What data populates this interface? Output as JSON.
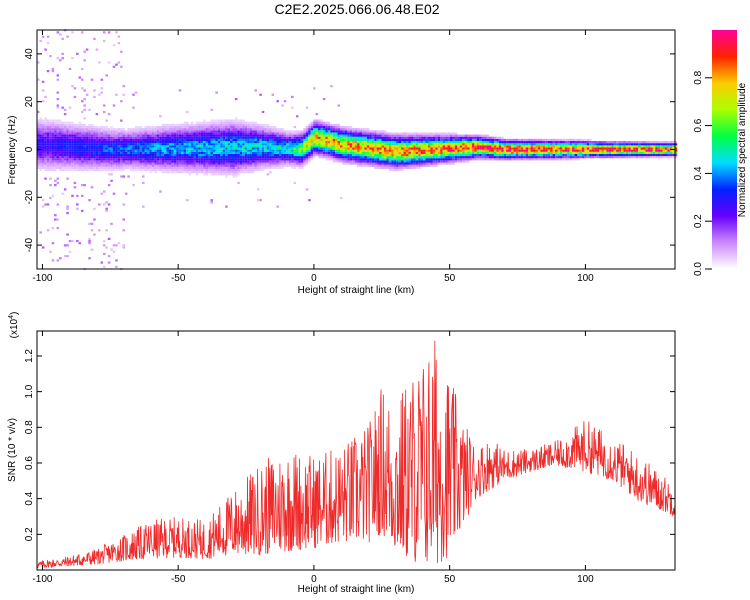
{
  "title": "C2E2.2025.066.06.48.E02",
  "chart_data": [
    {
      "type": "heatmap",
      "xlabel": "Height of straight line (km)",
      "ylabel": "Frequency (Hz)",
      "xlim": [
        -102,
        133
      ],
      "ylim": [
        -50,
        50
      ],
      "xticks": [
        -100,
        -50,
        0,
        50,
        100
      ],
      "xtick_labels": [
        "-100",
        "-50",
        "0",
        "50",
        "100"
      ],
      "yticks": [
        -40,
        -20,
        0,
        20,
        40
      ],
      "ytick_labels": [
        "-40",
        "-20",
        "0",
        "20",
        "40"
      ],
      "colorbar": {
        "label": "Normalized spectral amplitude",
        "range": [
          0,
          1
        ],
        "ticks": [
          0.0,
          0.2,
          0.4,
          0.6,
          0.8
        ],
        "tick_labels": [
          "0.0",
          "0.2",
          "0.4",
          "0.6",
          "0.8"
        ],
        "colors": [
          "#ffffff",
          "#cc88ff",
          "#6600ff",
          "#0022ff",
          "#00ddff",
          "#00ff44",
          "#aaff00",
          "#ffcc00",
          "#ff2200",
          "#ff0099"
        ]
      },
      "band_center_hz": [
        {
          "x": -100,
          "f": 2
        },
        {
          "x": -75,
          "f": 0
        },
        {
          "x": -50,
          "f": 0.5
        },
        {
          "x": -20,
          "f": 1
        },
        {
          "x": -5,
          "f": 0
        },
        {
          "x": 0,
          "f": 5
        },
        {
          "x": 10,
          "f": 2
        },
        {
          "x": 30,
          "f": -1
        },
        {
          "x": 60,
          "f": 1
        },
        {
          "x": 70,
          "f": 0
        },
        {
          "x": 133,
          "f": 0
        }
      ],
      "band_halfwidth_hz": [
        {
          "x": -100,
          "w": 8
        },
        {
          "x": -70,
          "w": 6
        },
        {
          "x": -30,
          "w": 8
        },
        {
          "x": -10,
          "w": 5
        },
        {
          "x": 30,
          "w": 5
        },
        {
          "x": 70,
          "w": 3
        },
        {
          "x": 133,
          "w": 2
        }
      ],
      "band_peak_amplitude": [
        {
          "x": -100,
          "a": 0.3
        },
        {
          "x": -50,
          "a": 0.45
        },
        {
          "x": -10,
          "a": 0.5
        },
        {
          "x": 0,
          "a": 0.85
        },
        {
          "x": 30,
          "a": 0.9
        },
        {
          "x": 70,
          "a": 1.0
        },
        {
          "x": 133,
          "a": 1.0
        }
      ]
    },
    {
      "type": "line",
      "xlabel": "Height of straight line (km)",
      "ylabel": "SNR (10 * v/v)",
      "y_multiplier_label": "(x10",
      "y_multiplier_exponent": "4",
      "y_multiplier_close": ")",
      "xlim": [
        -102,
        133
      ],
      "ylim": [
        0,
        1.34
      ],
      "xticks": [
        -100,
        -50,
        0,
        50,
        100
      ],
      "xtick_labels": [
        "-100",
        "-50",
        "0",
        "50",
        "100"
      ],
      "yticks": [
        0.2,
        0.4,
        0.6,
        0.8,
        1.0,
        1.2
      ],
      "ytick_labels": [
        "0.2",
        "0.4",
        "0.6",
        "0.8",
        "1.0",
        "1.2"
      ],
      "line_color": "#ee2a2a",
      "envelope": {
        "x": [
          -102,
          -90,
          -80,
          -70,
          -60,
          -50,
          -40,
          -30,
          -20,
          -10,
          0,
          10,
          20,
          25,
          30,
          35,
          40,
          45,
          50,
          55,
          60,
          65,
          70,
          80,
          90,
          100,
          110,
          120,
          133
        ],
        "upper": [
          0.05,
          0.08,
          0.12,
          0.2,
          0.28,
          0.3,
          0.28,
          0.45,
          0.6,
          0.7,
          0.65,
          0.7,
          0.82,
          1.05,
          0.95,
          1.1,
          1.2,
          1.34,
          1.1,
          0.85,
          0.7,
          0.75,
          0.68,
          0.68,
          0.73,
          0.85,
          0.75,
          0.65,
          0.48
        ],
        "lower": [
          0.01,
          0.02,
          0.03,
          0.05,
          0.06,
          0.07,
          0.06,
          0.08,
          0.08,
          0.1,
          0.12,
          0.15,
          0.15,
          0.2,
          0.1,
          0.05,
          0.02,
          0.02,
          0.08,
          0.25,
          0.4,
          0.45,
          0.5,
          0.55,
          0.58,
          0.55,
          0.5,
          0.38,
          0.3
        ]
      }
    }
  ]
}
